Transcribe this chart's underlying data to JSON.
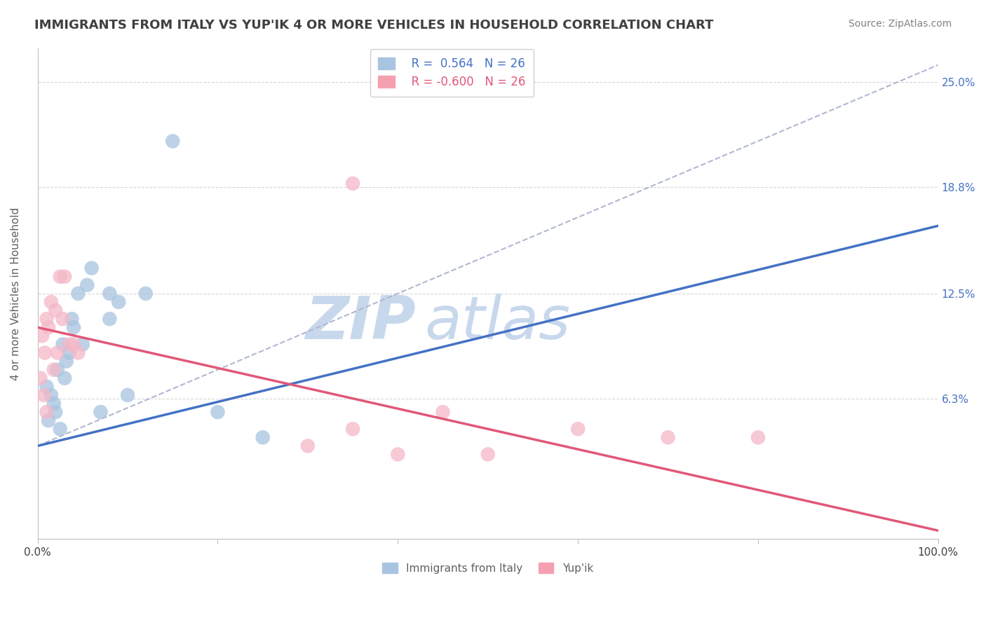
{
  "title": "IMMIGRANTS FROM ITALY VS YUP'IK 4 OR MORE VEHICLES IN HOUSEHOLD CORRELATION CHART",
  "source": "Source: ZipAtlas.com",
  "ylabel": "4 or more Vehicles in Household",
  "xlim": [
    0.0,
    100.0
  ],
  "ylim": [
    -2.0,
    27.0
  ],
  "ytick_values": [
    6.3,
    12.5,
    18.8,
    25.0
  ],
  "r_italy": 0.564,
  "r_yupik": -0.6,
  "n_italy": 26,
  "n_yupik": 26,
  "legend_italy_color": "#a8c4e0",
  "legend_yupik_color": "#f4a0b0",
  "scatter_italy_color": "#a8c4e0",
  "scatter_yupik_color": "#f4b8c8",
  "trend_italy_color": "#4472c4",
  "trend_yupik_color": "#e05878",
  "trend_dashed_color": "#b0b8d0",
  "background_color": "#ffffff",
  "title_color": "#404040",
  "source_color": "#808080",
  "axis_label_color": "#606060",
  "right_tick_color": "#4472c4",
  "italy_points_x": [
    1.5,
    2.0,
    2.5,
    3.0,
    3.5,
    4.0,
    1.0,
    1.2,
    1.8,
    2.2,
    2.8,
    3.2,
    3.8,
    4.5,
    5.0,
    5.5,
    6.0,
    7.0,
    8.0,
    9.0,
    10.0,
    12.0,
    15.0,
    20.0,
    8.0,
    25.0
  ],
  "italy_points_y": [
    6.5,
    5.5,
    4.5,
    7.5,
    9.0,
    10.5,
    7.0,
    5.0,
    6.0,
    8.0,
    9.5,
    8.5,
    11.0,
    12.5,
    9.5,
    13.0,
    14.0,
    5.5,
    11.0,
    12.0,
    6.5,
    12.5,
    21.5,
    5.5,
    12.5,
    4.0
  ],
  "yupik_points_x": [
    0.5,
    1.0,
    1.5,
    2.0,
    2.5,
    3.0,
    3.5,
    0.8,
    1.2,
    1.8,
    2.2,
    2.8,
    0.3,
    0.7,
    1.0,
    4.0,
    4.5,
    30.0,
    35.0,
    40.0,
    50.0,
    60.0,
    70.0,
    80.0,
    35.0,
    45.0
  ],
  "yupik_points_y": [
    10.0,
    11.0,
    12.0,
    11.5,
    13.5,
    13.5,
    9.5,
    9.0,
    10.5,
    8.0,
    9.0,
    11.0,
    7.5,
    6.5,
    5.5,
    9.5,
    9.0,
    3.5,
    4.5,
    3.0,
    3.0,
    4.5,
    4.0,
    4.0,
    19.0,
    5.5
  ],
  "italy_trend_y_start": 3.5,
  "italy_trend_y_end": 16.5,
  "yupik_trend_y_start": 10.5,
  "yupik_trend_y_end": -1.5,
  "dashed_trend_y_start": 3.5,
  "dashed_trend_y_end": 26.0,
  "watermark_zip": "ZIP",
  "watermark_atlas": "atlas",
  "watermark_color": "#c8d8ec",
  "grid_color": "#d8d8d8"
}
